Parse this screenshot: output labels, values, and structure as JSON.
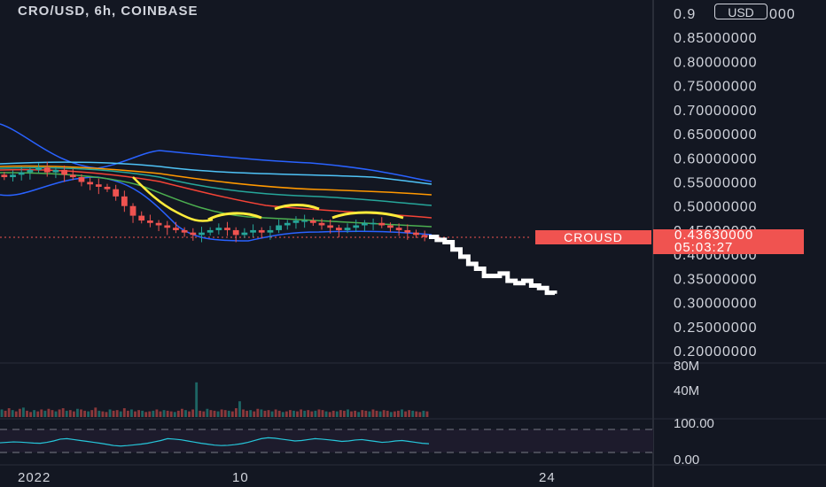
{
  "header": {
    "symbol_title": "CRO/USD, 6h, COINBASE",
    "currency_button": "USD"
  },
  "price_axis": {
    "labels": [
      "0.9",
      "0.85000000",
      "0.80000000",
      "0.75000000",
      "0.70000000",
      "0.65000000",
      "0.60000000",
      "0.55000000",
      "0.50000000",
      "0.45000000",
      "0.40000000",
      "0.35000000",
      "0.30000000",
      "0.25000000",
      "0.20000000"
    ],
    "label_values": [
      0.9,
      0.85,
      0.8,
      0.75,
      0.7,
      0.65,
      0.6,
      0.55,
      0.5,
      0.45,
      0.4,
      0.35,
      0.3,
      0.25,
      0.2
    ],
    "top_partial_suffix": "000"
  },
  "last_price": {
    "symbol_tag": "CROUSD",
    "price": "0.43630000",
    "countdown": "05:03:27",
    "value": 0.4363,
    "color": "#f05350"
  },
  "volume_axis": {
    "labels": [
      "80M",
      "40M"
    ]
  },
  "oscillator_axis": {
    "labels": [
      "100.00",
      "0.00"
    ]
  },
  "time_axis": {
    "labels": [
      "2022",
      "10",
      "24"
    ]
  },
  "colors": {
    "background": "#131722",
    "up": "#26a69a",
    "down": "#ef5350",
    "bollinger": "#2962ff",
    "projection": "#ffffff",
    "highlight": "#ffeb3b",
    "oscillator": "#26c6da"
  },
  "chart_data": {
    "type": "candlestick",
    "symbol": "CRO/USD",
    "timeframe": "6h",
    "exchange": "COINBASE",
    "y_range": [
      0.2,
      0.9
    ],
    "close_series": [
      0.56,
      0.565,
      0.57,
      0.575,
      0.58,
      0.57,
      0.575,
      0.565,
      0.56,
      0.55,
      0.545,
      0.54,
      0.535,
      0.52,
      0.5,
      0.48,
      0.47,
      0.465,
      0.46,
      0.455,
      0.45,
      0.445,
      0.44,
      0.445,
      0.45,
      0.455,
      0.45,
      0.44,
      0.445,
      0.45,
      0.445,
      0.45,
      0.46,
      0.465,
      0.47,
      0.47,
      0.465,
      0.46,
      0.455,
      0.45,
      0.455,
      0.46,
      0.465,
      0.465,
      0.46,
      0.455,
      0.45,
      0.445,
      0.44,
      0.436
    ],
    "projection": [
      0.436,
      0.43,
      0.425,
      0.41,
      0.395,
      0.38,
      0.37,
      0.355,
      0.355,
      0.36,
      0.345,
      0.34,
      0.345,
      0.335,
      0.33,
      0.32,
      0.318
    ],
    "volume_unit": "M",
    "volume_range": [
      0,
      80
    ],
    "volume": [
      12,
      10,
      14,
      11,
      9,
      13,
      15,
      10,
      8,
      11,
      9,
      12,
      10,
      13,
      11,
      9,
      12,
      14,
      10,
      11,
      9,
      13,
      12,
      10,
      9,
      11,
      15,
      10,
      9,
      8,
      12,
      10,
      11,
      9,
      14,
      10,
      12,
      9,
      11,
      10,
      8,
      9,
      10,
      12,
      9,
      11,
      10,
      9,
      8,
      10,
      13,
      11,
      9,
      12,
      55,
      10,
      9,
      13,
      11,
      10,
      9,
      12,
      11,
      10,
      9,
      14,
      25,
      12,
      10,
      11,
      9,
      13,
      12,
      10,
      11,
      9,
      12,
      10,
      8,
      9,
      11,
      10,
      9,
      12,
      10,
      11,
      9,
      10,
      12,
      11,
      9,
      8,
      10,
      9,
      11,
      10,
      12,
      9,
      10,
      8,
      11,
      10,
      9,
      12,
      10,
      9,
      11,
      10,
      8,
      9,
      10,
      12,
      9,
      11,
      10,
      9,
      8,
      10,
      9
    ],
    "oscillator_range": [
      0,
      100
    ],
    "oscillator": [
      42,
      44,
      46,
      45,
      43,
      41,
      40,
      44,
      50,
      58,
      60,
      56,
      52,
      48,
      44,
      40,
      35,
      30,
      28,
      30,
      33,
      36,
      40,
      46,
      52,
      60,
      58,
      55,
      50,
      45,
      40,
      36,
      32,
      30,
      31,
      34,
      38,
      44,
      52,
      60,
      64,
      62,
      58,
      54,
      50,
      52,
      56,
      60,
      58,
      55,
      52,
      48,
      50,
      54,
      56,
      52,
      48,
      44,
      46,
      50,
      52,
      48,
      44,
      40,
      38
    ]
  }
}
